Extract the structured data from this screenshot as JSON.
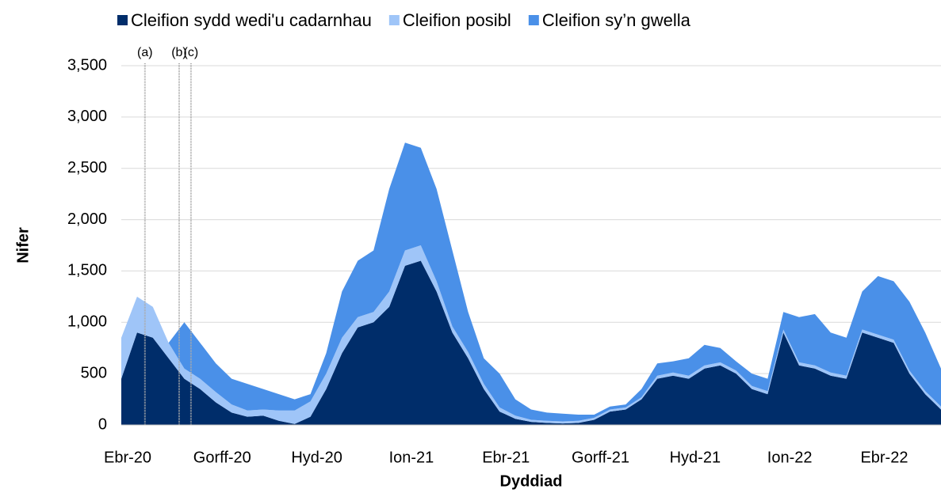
{
  "chart_data": {
    "type": "stacked_area",
    "xlabel": "Dyddiad",
    "ylabel": "Nifer",
    "categories": [
      "Ebr-20",
      null,
      null,
      null,
      null,
      null,
      "Gorff-20",
      null,
      null,
      null,
      null,
      null,
      "Hyd-20",
      null,
      null,
      null,
      null,
      null,
      "Ion-21",
      null,
      null,
      null,
      null,
      null,
      "Ebr-21",
      null,
      null,
      null,
      null,
      null,
      "Gorff-21",
      null,
      null,
      null,
      null,
      null,
      "Hyd-21",
      null,
      null,
      null,
      null,
      null,
      "Ion-22",
      null,
      null,
      null,
      null,
      null,
      "Ebr-22",
      null,
      null,
      null,
      null
    ],
    "series": [
      {
        "name": "Cleifion sydd wedi'u cadarnhau",
        "color": "#002d6a",
        "values": [
          450,
          900,
          850,
          650,
          450,
          350,
          220,
          120,
          80,
          90,
          40,
          10,
          80,
          350,
          700,
          950,
          1000,
          1150,
          1550,
          1600,
          1300,
          900,
          650,
          350,
          130,
          60,
          30,
          20,
          15,
          20,
          50,
          130,
          150,
          250,
          450,
          480,
          450,
          550,
          580,
          500,
          350,
          300,
          900,
          580,
          550,
          480,
          450,
          900,
          850,
          800,
          500,
          300,
          150
        ]
      },
      {
        "name": "Cleifion posibl",
        "color": "#9fc5f8",
        "values": [
          400,
          350,
          300,
          150,
          100,
          100,
          100,
          80,
          60,
          60,
          100,
          130,
          150,
          150,
          150,
          100,
          100,
          150,
          150,
          150,
          100,
          60,
          60,
          50,
          40,
          30,
          20,
          20,
          20,
          20,
          20,
          20,
          20,
          20,
          30,
          30,
          30,
          30,
          30,
          30,
          30,
          30,
          30,
          30,
          30,
          30,
          30,
          30,
          30,
          30,
          30,
          30,
          30
        ]
      },
      {
        "name": "Cleifion sy’n gwella",
        "color": "#4a90e8",
        "values": [
          0,
          0,
          0,
          0,
          450,
          350,
          280,
          250,
          260,
          200,
          160,
          110,
          70,
          200,
          450,
          550,
          600,
          1000,
          1050,
          950,
          900,
          740,
          390,
          250,
          330,
          160,
          100,
          80,
          75,
          60,
          30,
          30,
          30,
          80,
          120,
          110,
          170,
          200,
          140,
          90,
          120,
          120,
          170,
          440,
          500,
          390,
          370,
          370,
          570,
          570,
          670,
          570,
          370
        ]
      }
    ],
    "ylim": [
      0,
      3500
    ],
    "yticks": [
      0,
      500,
      {
        "value": 1000,
        "label": "1,000"
      },
      {
        "value": 1500,
        "label": "1,500"
      },
      {
        "value": 2000,
        "label": "2,000"
      },
      {
        "value": 2500,
        "label": "2,500"
      },
      {
        "value": 3000,
        "label": "3,000"
      },
      {
        "value": 3500,
        "label": "3,500"
      }
    ],
    "grid": true,
    "legend": "top",
    "annotations": [
      {
        "text": "(a)",
        "x": 1.5
      },
      {
        "text": "(b)",
        "x": 3.67
      },
      {
        "text": "(c)",
        "x": 4.42
      }
    ]
  }
}
